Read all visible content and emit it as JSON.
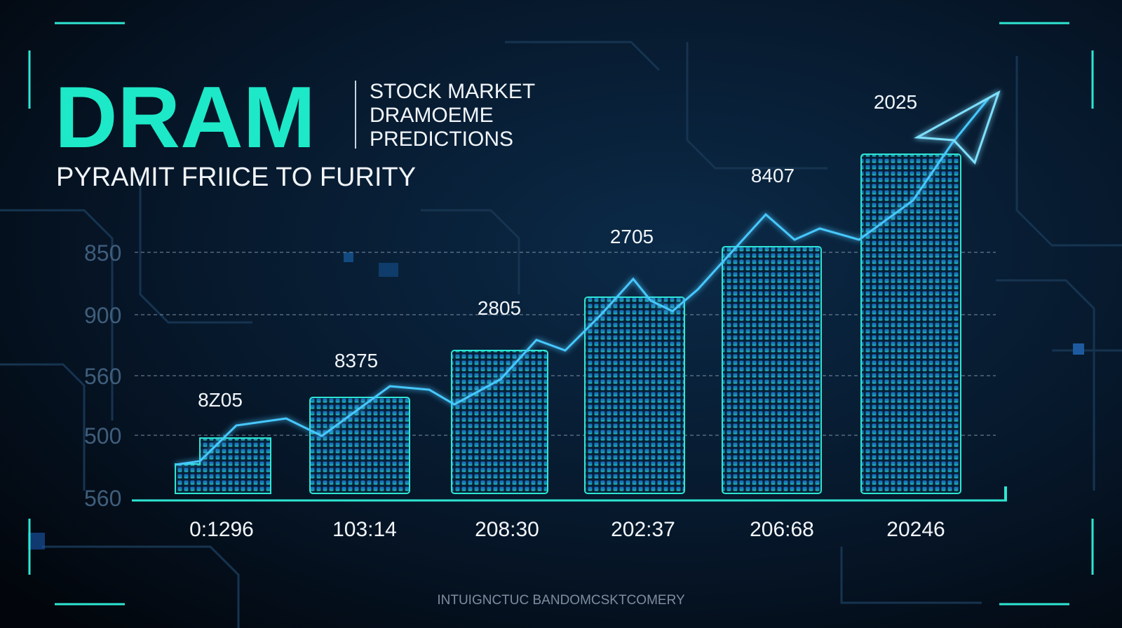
{
  "header": {
    "title": "DRAM",
    "side_lines": [
      "STOCK MARKET",
      "DRAMOEME",
      "PREDICTIONS"
    ],
    "subtitle": "PYRAMIT FRIICE TO FURITY"
  },
  "axis_labels": [
    "850",
    "900",
    "560",
    "500",
    "560"
  ],
  "x_labels": [
    "0:1296",
    "103:14",
    "208:30",
    "202:37",
    "206:68",
    "20246"
  ],
  "annotations": [
    "8Z05",
    "8375",
    "2805",
    "2705",
    "8407",
    "2025"
  ],
  "footer": "INTUIGNCTUC BANDOMCSKTCOMERY"
}
